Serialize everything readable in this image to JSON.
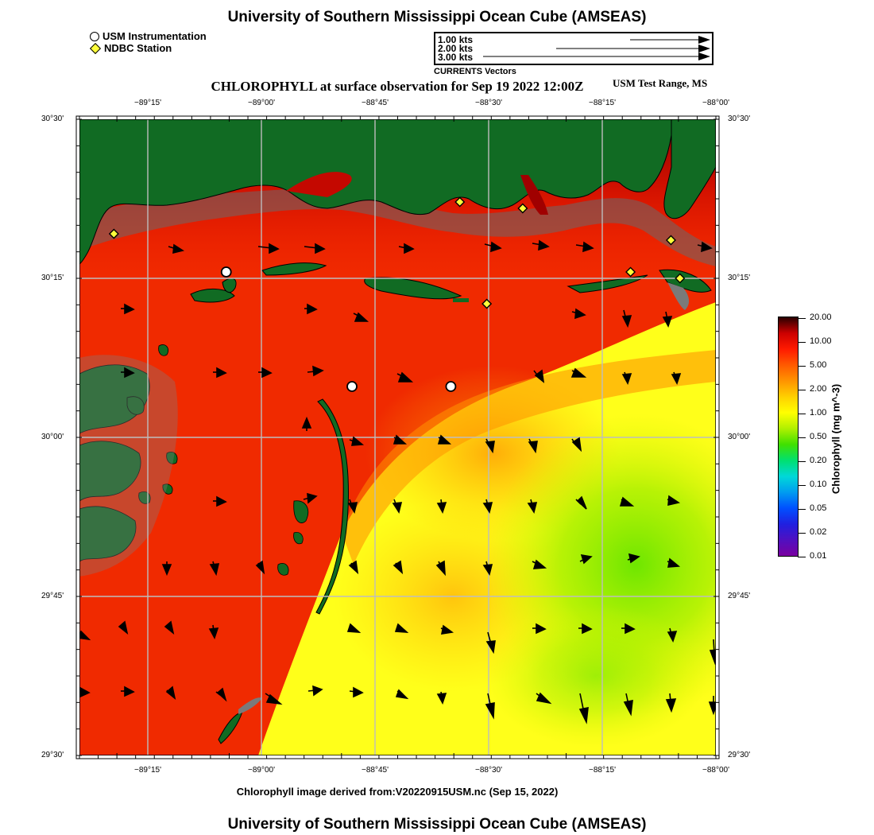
{
  "header": {
    "title": "University of Southern Mississippi Ocean Cube (AMSEAS)"
  },
  "legend": {
    "items": [
      {
        "symbol": "circle-icon",
        "label": "USM Instrumentation"
      },
      {
        "symbol": "diamond-icon",
        "label": "NDBC Station"
      }
    ]
  },
  "vector_key": {
    "rows": [
      "1.00 kts",
      "2.00 kts",
      "3.00 kts"
    ],
    "caption": "CURRENTS Vectors"
  },
  "map": {
    "title": "CHLOROPHYLL at surface observation for Sep 19 2022 12:00Z",
    "region": "USM Test Range, MS",
    "lon_labels": [
      "−89°15'",
      "−89°00'",
      "−88°45'",
      "−88°30'",
      "−88°15'",
      "−88°00'"
    ],
    "lat_labels": [
      "30°30'",
      "30°15'",
      "30°00'",
      "29°45'",
      "29°30'"
    ],
    "bounds": {
      "lon_min": -89.4167,
      "lon_max": -88.0,
      "lat_min": 29.5,
      "lat_max": 30.5
    },
    "usm_sites": [
      {
        "lon": -89.09,
        "lat": 30.26
      },
      {
        "lon": -88.81,
        "lat": 30.08
      },
      {
        "lon": -88.59,
        "lat": 30.08
      }
    ],
    "ndbc_stations": [
      {
        "lon": -89.34,
        "lat": 30.32
      },
      {
        "lon": -88.57,
        "lat": 30.37
      },
      {
        "lon": -88.43,
        "lat": 30.36
      },
      {
        "lon": -88.51,
        "lat": 30.21
      },
      {
        "lon": -88.19,
        "lat": 30.26
      },
      {
        "lon": -88.1,
        "lat": 30.31
      },
      {
        "lon": -88.08,
        "lat": 30.25
      }
    ]
  },
  "colorbar": {
    "title": "Chlorophyll (mg m^-3)",
    "ticks": [
      "20.00",
      "10.00",
      "5.00",
      "2.00",
      "1.00",
      "0.50",
      "0.20",
      "0.10",
      "0.05",
      "0.02",
      "0.01"
    ],
    "colors": [
      "#2a0000",
      "#cc0000",
      "#ff1a00",
      "#ff5a00",
      "#ff9400",
      "#ffd000",
      "#ffff00",
      "#b0f000",
      "#40e000",
      "#00e070",
      "#00d8d8",
      "#009cf0",
      "#0050ff",
      "#2020e0",
      "#5010c0",
      "#7a00a0"
    ]
  },
  "footer": {
    "source": "Chlorophyll image derived from:V20220915USM.nc (Sep 15, 2022)",
    "title": "University of Southern Mississippi Ocean Cube (AMSEAS)"
  }
}
